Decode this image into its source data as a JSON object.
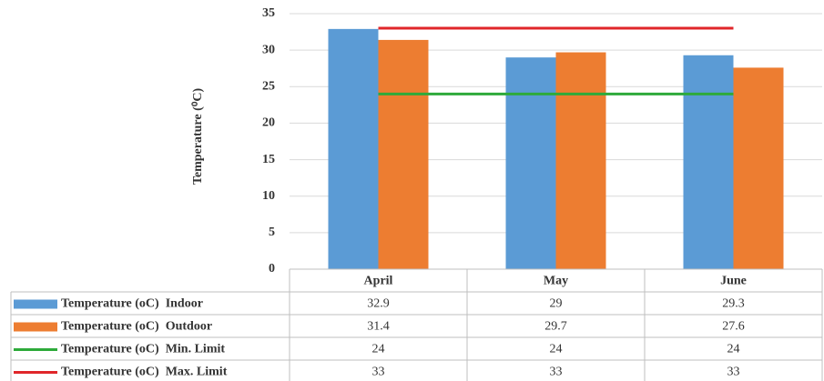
{
  "chart_data": {
    "type": "bar",
    "y_label": "Temperature (⁰C)",
    "categories": [
      "April",
      "May",
      "June"
    ],
    "series": [
      {
        "name": "Temperature (oC)  Indoor",
        "type": "bar",
        "color": "#5b9bd5",
        "values": [
          32.9,
          29,
          29.3
        ]
      },
      {
        "name": "Temperature (oC)  Outdoor",
        "type": "bar",
        "color": "#ed7d31",
        "values": [
          31.4,
          29.7,
          27.6
        ]
      },
      {
        "name": "Temperature (oC)  Min. Limit",
        "type": "line",
        "color": "#2eaa3a",
        "values": [
          24,
          24,
          24
        ]
      },
      {
        "name": "Temperature (oC)  Max. Limit",
        "type": "line",
        "color": "#e0262a",
        "values": [
          33,
          33,
          33
        ]
      }
    ],
    "ylim": [
      0,
      35
    ],
    "yticks": [
      0,
      5,
      10,
      15,
      20,
      25,
      30,
      35
    ],
    "grid": true
  }
}
